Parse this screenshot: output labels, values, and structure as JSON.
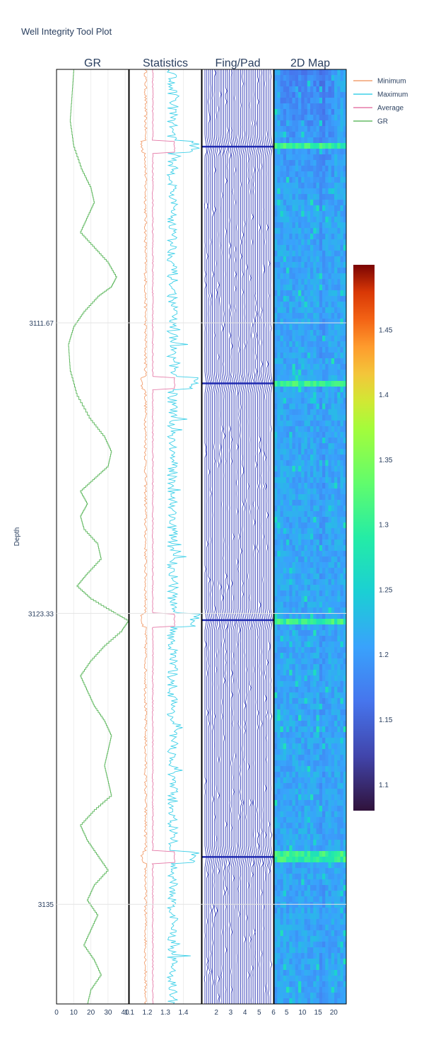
{
  "title": "Well Integrity Tool Plot",
  "chart_data": {
    "type": "multi-track well log",
    "y_axis": {
      "label": "Depth",
      "range": [
        3101.5,
        3139.0
      ],
      "ticks": [
        3111.67,
        3123.33,
        3135
      ],
      "tick_labels": [
        "3111.67",
        "3123.33",
        "3135"
      ],
      "reversed": true
    },
    "tracks": [
      {
        "name": "GR",
        "type": "line",
        "xlim": [
          0,
          42
        ],
        "x_ticks": [
          0,
          10,
          20,
          30,
          40
        ],
        "series": [
          {
            "name": "GR",
            "color": "#66bb66",
            "points": [
              [
                3101.5,
                10
              ],
              [
                3102.5,
                9
              ],
              [
                3103.5,
                8
              ],
              [
                3104.5,
                10
              ],
              [
                3105.5,
                15
              ],
              [
                3106.2,
                20
              ],
              [
                3106.8,
                22
              ],
              [
                3107.4,
                18
              ],
              [
                3108.0,
                14
              ],
              [
                3108.6,
                22
              ],
              [
                3109.2,
                30
              ],
              [
                3109.8,
                35
              ],
              [
                3110.2,
                32
              ],
              [
                3110.6,
                24
              ],
              [
                3111.2,
                16
              ],
              [
                3111.8,
                10
              ],
              [
                3112.5,
                7
              ],
              [
                3113.5,
                8
              ],
              [
                3114.5,
                12
              ],
              [
                3115.5,
                20
              ],
              [
                3116.2,
                28
              ],
              [
                3116.8,
                32
              ],
              [
                3117.4,
                30
              ],
              [
                3117.9,
                22
              ],
              [
                3118.4,
                14
              ],
              [
                3118.9,
                18
              ],
              [
                3119.4,
                14
              ],
              [
                3119.9,
                16
              ],
              [
                3120.5,
                24
              ],
              [
                3121.1,
                26
              ],
              [
                3121.7,
                18
              ],
              [
                3122.2,
                12
              ],
              [
                3122.7,
                20
              ],
              [
                3123.2,
                32
              ],
              [
                3123.6,
                42
              ],
              [
                3124.0,
                38
              ],
              [
                3124.6,
                28
              ],
              [
                3125.2,
                20
              ],
              [
                3125.8,
                14
              ],
              [
                3126.4,
                18
              ],
              [
                3127.0,
                22
              ],
              [
                3127.6,
                28
              ],
              [
                3128.2,
                32
              ],
              [
                3128.8,
                30
              ],
              [
                3129.4,
                28
              ],
              [
                3130.0,
                30
              ],
              [
                3130.6,
                32
              ],
              [
                3131.2,
                22
              ],
              [
                3131.8,
                14
              ],
              [
                3132.4,
                18
              ],
              [
                3133.0,
                24
              ],
              [
                3133.6,
                30
              ],
              [
                3134.2,
                22
              ],
              [
                3134.8,
                18
              ],
              [
                3135.4,
                24
              ],
              [
                3136.0,
                20
              ],
              [
                3136.6,
                16
              ],
              [
                3137.2,
                22
              ],
              [
                3137.8,
                26
              ],
              [
                3138.4,
                20
              ],
              [
                3139.0,
                18
              ]
            ]
          }
        ]
      },
      {
        "name": "Statistics",
        "type": "line",
        "xlim": [
          1.1,
          1.5
        ],
        "x_ticks": [
          1.1,
          1.2,
          1.3,
          1.4
        ],
        "series": [
          {
            "name": "Minimum",
            "color": "#f2a070",
            "base": 1.19
          },
          {
            "name": "Maximum",
            "color": "#3fd0e8",
            "base": 1.31
          },
          {
            "name": "Average",
            "color": "#e57aa8",
            "base": 1.23
          }
        ],
        "collar_depths": [
          3104.6,
          3114.1,
          3123.6,
          3133.1
        ]
      },
      {
        "name": "Fing/Pad",
        "type": "line",
        "xlim": [
          1,
          6
        ],
        "x_ticks": [
          2,
          3,
          4,
          5,
          6
        ],
        "finger_count": 36,
        "color": "#1f2ab0"
      },
      {
        "name": "2D Map",
        "type": "heatmap",
        "xlim": [
          1,
          24
        ],
        "x_ticks": [
          5,
          10,
          15,
          20
        ],
        "colorscale": "Turbo",
        "colorbar": {
          "range": [
            1.08,
            1.5
          ],
          "ticks": [
            1.1,
            1.15,
            1.2,
            1.25,
            1.3,
            1.35,
            1.4,
            1.45
          ],
          "tick_labels": [
            "1.1",
            "1.15",
            "1.2",
            "1.25",
            "1.3",
            "1.35",
            "1.4",
            "1.45"
          ]
        }
      }
    ],
    "legend": {
      "placement": "top-right",
      "entries": [
        {
          "name": "Minimum",
          "color": "#f2a070"
        },
        {
          "name": "Maximum",
          "color": "#3fd0e8"
        },
        {
          "name": "Average",
          "color": "#e57aa8"
        },
        {
          "name": "GR",
          "color": "#66bb66"
        }
      ]
    },
    "grid": true
  }
}
